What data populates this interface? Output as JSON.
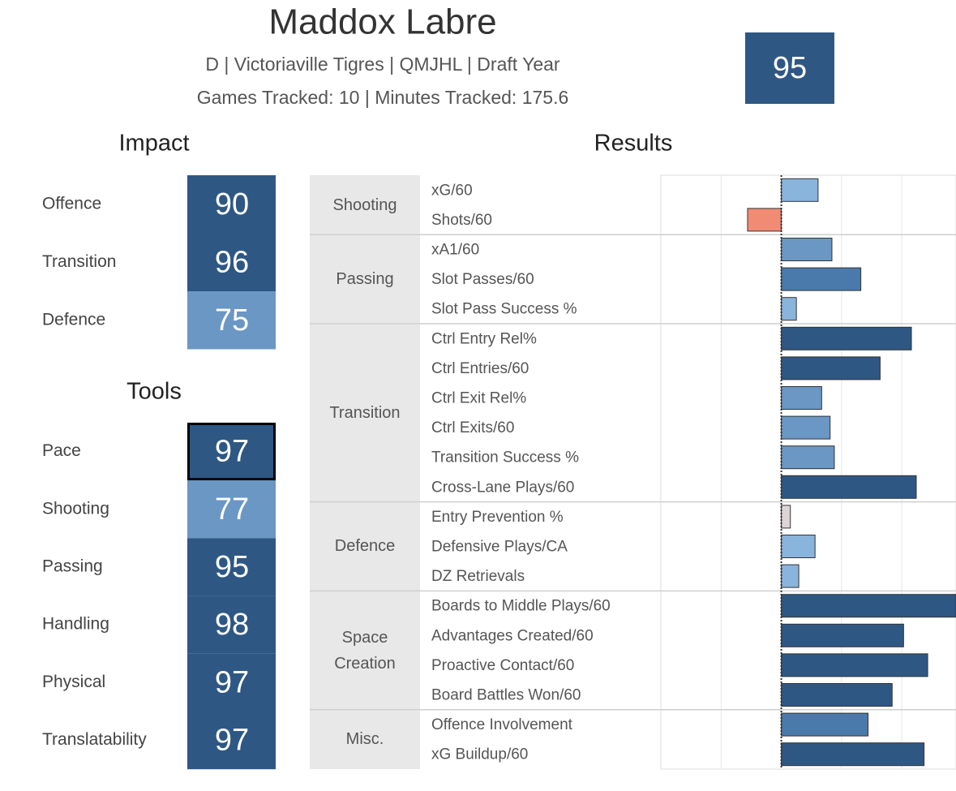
{
  "header": {
    "title": "Maddox Labre",
    "subtitle": "D | Victoriaville Tigres | QMJHL | Draft Year",
    "tracking": "Games Tracked: 10 | Minutes Tracked: 175.6",
    "overall": 95,
    "overall_color": "#2e5784"
  },
  "impact": {
    "title": "Impact",
    "items": [
      {
        "label": "Offence",
        "value": 90,
        "color": "#2e5784"
      },
      {
        "label": "Transition",
        "value": 96,
        "color": "#2e5784"
      },
      {
        "label": "Defence",
        "value": 75,
        "color": "#6a97c4"
      }
    ]
  },
  "tools": {
    "title": "Tools",
    "items": [
      {
        "label": "Pace",
        "value": 97,
        "color": "#2e5784",
        "highlighted": true
      },
      {
        "label": "Shooting",
        "value": 77,
        "color": "#6a97c4"
      },
      {
        "label": "Passing",
        "value": 95,
        "color": "#2e5784"
      },
      {
        "label": "Handling",
        "value": 98,
        "color": "#2e5784"
      },
      {
        "label": "Physical",
        "value": 97,
        "color": "#2e5784"
      },
      {
        "label": "Translatability",
        "value": 97,
        "color": "#2e5784"
      }
    ]
  },
  "chart_data": {
    "type": "bar",
    "orientation": "horizontal",
    "title": "Results",
    "xlim": [
      -2,
      2.9
    ],
    "xticks": [
      -1,
      1,
      2
    ],
    "grid": true,
    "groups": [
      {
        "name": "Shooting",
        "categories": [
          "xG/60",
          "Shots/60"
        ],
        "values": [
          0.61,
          -0.56
        ],
        "colors": [
          "#89b4dc",
          "#f28b74"
        ]
      },
      {
        "name": "Passing",
        "categories": [
          "xA1/60",
          "Slot Passes/60",
          "Slot Pass Success %"
        ],
        "values": [
          0.84,
          1.32,
          0.25
        ],
        "colors": [
          "#6a97c4",
          "#4a7aab",
          "#89b4dc"
        ]
      },
      {
        "name": "Transition",
        "categories": [
          "Ctrl Entry Rel%",
          "Ctrl Entries/60",
          "Ctrl Exit Rel%",
          "Ctrl Exits/60",
          "Transition Success %",
          "Cross-Lane Plays/60"
        ],
        "values": [
          2.16,
          1.64,
          0.67,
          0.81,
          0.88,
          2.24
        ],
        "colors": [
          "#2e5784",
          "#2e5784",
          "#6a97c4",
          "#6a97c4",
          "#6a97c4",
          "#2e5784"
        ]
      },
      {
        "name": "Defence",
        "categories": [
          "Entry Prevention %",
          "Defensive Plays/CA",
          "DZ Retrievals"
        ],
        "values": [
          0.15,
          0.56,
          0.29
        ],
        "colors": [
          "#ddd4d6",
          "#89b4dc",
          "#89b4dc"
        ]
      },
      {
        "name": "Space Creation",
        "categories": [
          "Boards to Middle Plays/60",
          "Advantages Created/60",
          "Proactive Contact/60",
          "Board Battles Won/60"
        ],
        "values": [
          2.9,
          2.03,
          2.43,
          1.84
        ],
        "colors": [
          "#2e5784",
          "#2e5784",
          "#2e5784",
          "#2e5784"
        ]
      },
      {
        "name": "Misc.",
        "categories": [
          "Offence Involvement",
          "xG Buildup/60"
        ],
        "values": [
          1.44,
          2.37
        ],
        "colors": [
          "#4a7aab",
          "#2e5784"
        ]
      }
    ]
  }
}
